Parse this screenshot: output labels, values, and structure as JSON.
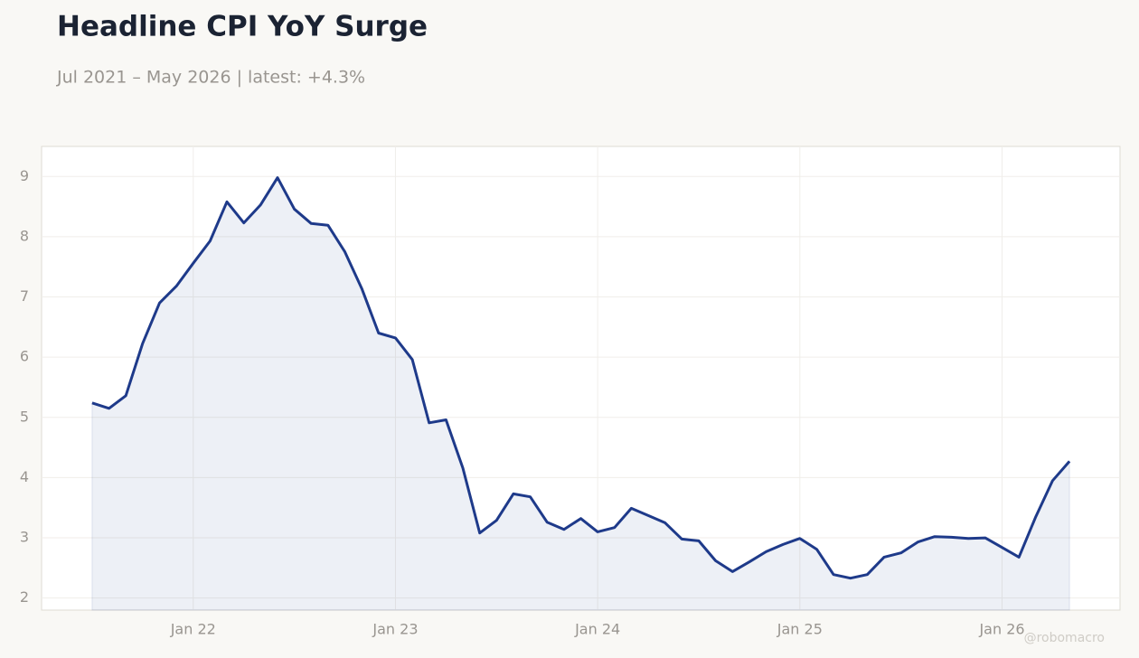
{
  "chart_data": {
    "type": "line",
    "title": "Headline CPI YoY Surge",
    "subtitle": "Jul 2021 – May 2026 | latest: +4.3%",
    "watermark": "@robomacro",
    "x": [
      "2021-07",
      "2021-08",
      "2021-09",
      "2021-10",
      "2021-11",
      "2021-12",
      "2022-01",
      "2022-02",
      "2022-03",
      "2022-04",
      "2022-05",
      "2022-06",
      "2022-07",
      "2022-08",
      "2022-09",
      "2022-10",
      "2022-11",
      "2022-12",
      "2023-01",
      "2023-02",
      "2023-03",
      "2023-04",
      "2023-05",
      "2023-06",
      "2023-07",
      "2023-08",
      "2023-09",
      "2023-10",
      "2023-11",
      "2023-12",
      "2024-01",
      "2024-02",
      "2024-03",
      "2024-04",
      "2024-05",
      "2024-06",
      "2024-07",
      "2024-08",
      "2024-09",
      "2024-10",
      "2024-11",
      "2024-12",
      "2025-01",
      "2025-02",
      "2025-03",
      "2025-04",
      "2025-05",
      "2025-06",
      "2025-07",
      "2025-08",
      "2025-09",
      "2025-10",
      "2025-11",
      "2025-12",
      "2026-01",
      "2026-02",
      "2026-03",
      "2026-04",
      "2026-05"
    ],
    "series": [
      {
        "name": "Headline CPI YoY",
        "color": "#1e3a8a",
        "fill": "rgba(30,58,138,0.08)",
        "values": [
          5.24,
          5.15,
          5.36,
          6.23,
          6.9,
          7.18,
          7.56,
          7.93,
          8.58,
          8.23,
          8.53,
          8.98,
          8.46,
          8.22,
          8.19,
          7.75,
          7.14,
          6.4,
          6.32,
          5.96,
          4.91,
          4.96,
          4.16,
          3.08,
          3.29,
          3.73,
          3.68,
          3.26,
          3.14,
          3.32,
          3.1,
          3.17,
          3.49,
          3.37,
          3.25,
          2.98,
          2.95,
          2.62,
          2.44,
          2.6,
          2.77,
          2.89,
          2.99,
          2.81,
          2.39,
          2.33,
          2.39,
          2.68,
          2.75,
          2.93,
          3.02,
          3.01,
          2.99,
          3.0,
          2.84,
          2.68,
          3.35,
          3.95,
          4.27
        ]
      }
    ],
    "xlim": [
      "2021-04",
      "2026-08"
    ],
    "xticks": [
      {
        "value": "2022-01",
        "label": "Jan 22"
      },
      {
        "value": "2023-01",
        "label": "Jan 23"
      },
      {
        "value": "2024-01",
        "label": "Jan 24"
      },
      {
        "value": "2025-01",
        "label": "Jan 25"
      },
      {
        "value": "2026-01",
        "label": "Jan 26"
      }
    ],
    "ylim": [
      1.8,
      9.5
    ],
    "yticks": [
      2,
      3,
      4,
      5,
      6,
      7,
      8,
      9
    ],
    "grid": true
  }
}
